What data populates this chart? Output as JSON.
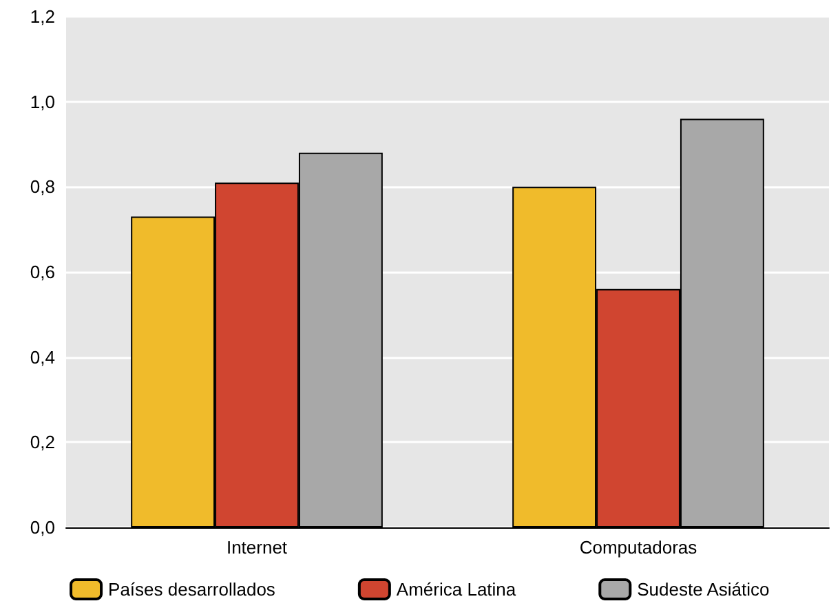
{
  "chart_data": {
    "type": "bar",
    "categories": [
      "Internet",
      "Computadoras"
    ],
    "series": [
      {
        "name": "Países desarrollados",
        "color": "#f0bb2b",
        "values": [
          0.73,
          0.8
        ]
      },
      {
        "name": "América Latina",
        "color": "#d04530",
        "values": [
          0.81,
          0.56
        ]
      },
      {
        "name": "Sudeste Asiático",
        "color": "#a8a8a8",
        "values": [
          0.88,
          0.96
        ]
      }
    ],
    "ylim": [
      0,
      1.2
    ],
    "yticks": [
      {
        "value": 0,
        "label": "0,0"
      },
      {
        "value": 0.2,
        "label": "0,2"
      },
      {
        "value": 0.4,
        "label": "0,4"
      },
      {
        "value": 0.6,
        "label": "0,6"
      },
      {
        "value": 0.8,
        "label": "0,8"
      },
      {
        "value": 1,
        "label": "1,0"
      },
      {
        "value": 1.2,
        "label": "1,2"
      }
    ],
    "grid": "y",
    "legend": "bottom"
  }
}
